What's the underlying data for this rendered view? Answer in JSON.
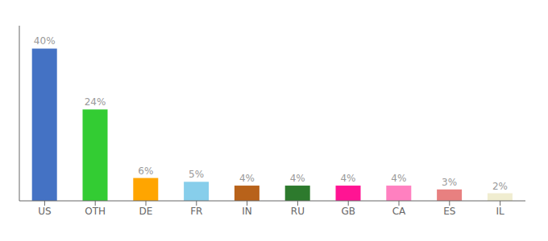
{
  "chart_data": {
    "type": "bar",
    "categories": [
      "US",
      "OTH",
      "DE",
      "FR",
      "IN",
      "RU",
      "GB",
      "CA",
      "ES",
      "IL"
    ],
    "values": [
      40,
      24,
      6,
      5,
      4,
      4,
      4,
      4,
      3,
      2
    ],
    "value_labels": [
      "40%",
      "24%",
      "6%",
      "5%",
      "4%",
      "4%",
      "4%",
      "4%",
      "3%",
      "2%"
    ],
    "data_labels": true,
    "colors": [
      "#4472C4",
      "#33CC33",
      "#FFA500",
      "#87CEEB",
      "#B8621A",
      "#2D7A2D",
      "#FF1493",
      "#FF80C0",
      "#E88080",
      "#F0EDD0"
    ],
    "ylim": [
      0,
      46
    ],
    "tick_labels": "x",
    "grid": false
  }
}
